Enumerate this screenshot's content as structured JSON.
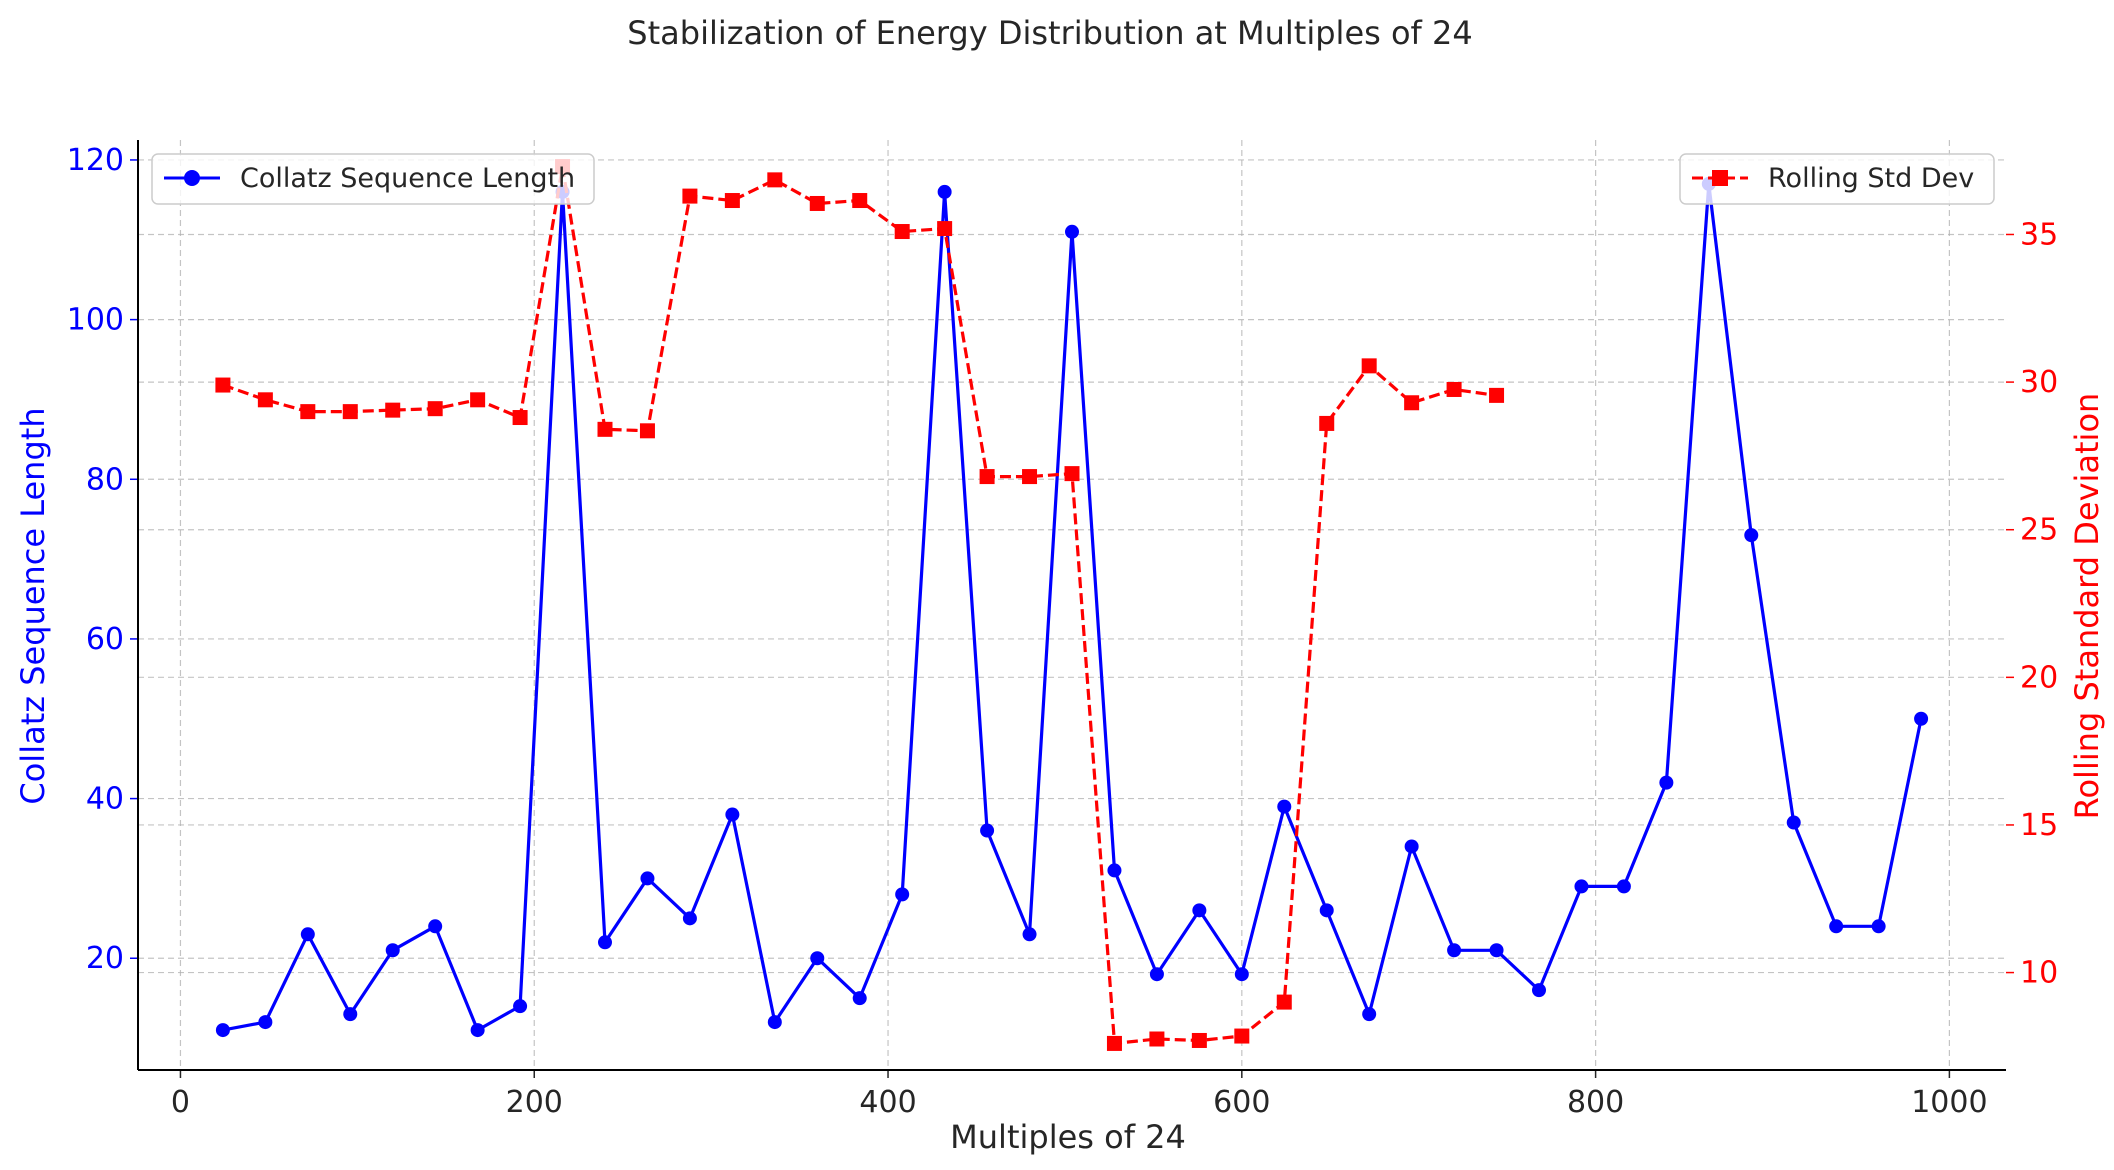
{
  "chart_data": {
    "type": "line",
    "title": "Stabilization of Energy Distribution at Multiples of 24",
    "xlabel": "Multiples of 24",
    "ylabel_left": "Collatz Sequence Length",
    "ylabel_right": "Rolling Standard Deviation",
    "xlim": [
      -24,
      1032
    ],
    "ylim_left": [
      6,
      122.5
    ],
    "ylim_right": [
      6.7,
      38.2
    ],
    "x_ticks": [
      0,
      200,
      400,
      600,
      800,
      1000
    ],
    "y_ticks_left": [
      20,
      40,
      60,
      80,
      100,
      120
    ],
    "y_ticks_right": [
      10,
      15,
      20,
      25,
      30,
      35
    ],
    "grid": true,
    "series": [
      {
        "name": "Collatz Sequence Length",
        "axis": "left",
        "color": "#0000ff",
        "linestyle": "solid",
        "marker": "circle",
        "legend_position": "top-left",
        "x": [
          24,
          48,
          72,
          96,
          120,
          144,
          168,
          192,
          216,
          240,
          264,
          288,
          312,
          336,
          360,
          384,
          408,
          432,
          456,
          480,
          504,
          528,
          552,
          576,
          600,
          624,
          648,
          672,
          696,
          720,
          744,
          768,
          792,
          816,
          840,
          864,
          888,
          912,
          936,
          960,
          984
        ],
        "values": [
          11,
          12,
          23,
          13,
          21,
          24,
          11,
          14,
          116,
          22,
          30,
          25,
          38,
          12,
          20,
          15,
          28,
          116,
          36,
          23,
          111,
          31,
          18,
          26,
          18,
          39,
          26,
          13,
          34,
          21,
          21,
          16,
          29,
          29,
          42,
          117,
          73,
          37,
          24,
          24,
          50
        ]
      },
      {
        "name": "Rolling Std Dev",
        "axis": "right",
        "color": "#ff0000",
        "linestyle": "dashed",
        "marker": "square",
        "legend_position": "top-right",
        "x": [
          24,
          48,
          72,
          96,
          120,
          144,
          168,
          192,
          216,
          240,
          264,
          288,
          312,
          336,
          360,
          384,
          408,
          432,
          456,
          480,
          504,
          528,
          552,
          576,
          600,
          624,
          648,
          672,
          696,
          720,
          744
        ],
        "values": [
          29.9,
          29.4,
          29.0,
          29.0,
          29.05,
          29.1,
          29.4,
          28.8,
          37.3,
          28.4,
          28.35,
          36.3,
          36.15,
          36.85,
          36.05,
          36.15,
          35.1,
          35.2,
          26.8,
          26.8,
          26.9,
          7.6,
          7.75,
          7.7,
          7.85,
          9.0,
          28.6,
          30.55,
          29.3,
          29.75,
          29.55
        ]
      }
    ]
  }
}
